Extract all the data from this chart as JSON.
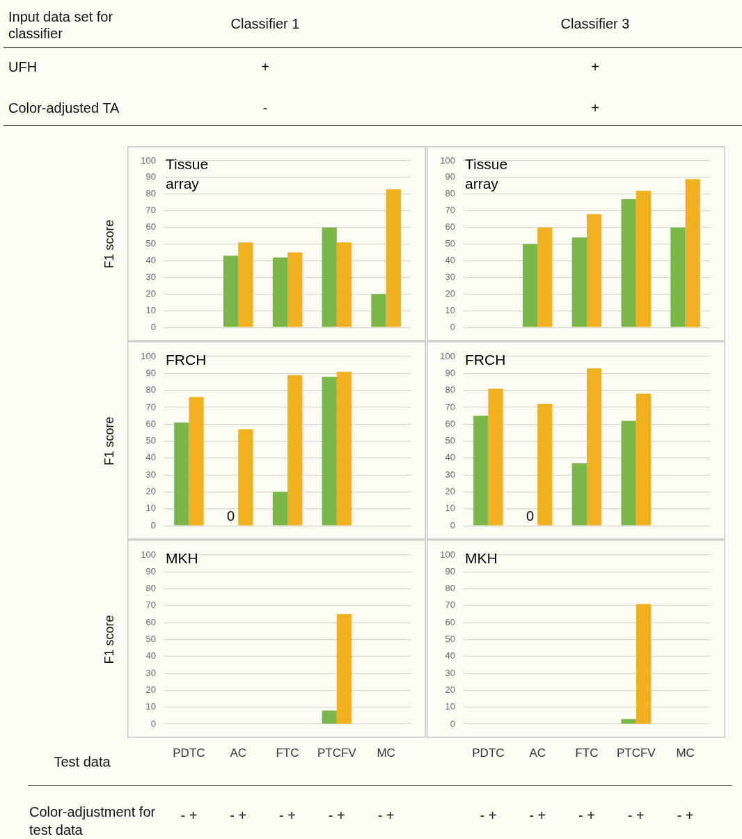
{
  "chart_data": [
    {
      "type": "other",
      "annotations": [
        "Input data set for classifier",
        "Classifier 1",
        "Classifier 3",
        "UFH",
        "+",
        "+",
        "Color-adjusted TA",
        "-",
        "+"
      ]
    },
    {
      "type": "bar",
      "title": "Tissue array",
      "ylabel": "F1 score",
      "categories": [
        null,
        null,
        null,
        null,
        null
      ],
      "ylim": [
        0,
        100
      ],
      "yticks": [
        0,
        10,
        20,
        30,
        40,
        50,
        60,
        70,
        80,
        90,
        100
      ],
      "grid": "y",
      "tick_labels": "y",
      "series": [
        {
          "color": "#7ab648",
          "values": [
            null,
            43,
            42,
            60,
            20
          ]
        },
        {
          "color": "#f0b020",
          "values": [
            null,
            51,
            45,
            51,
            83
          ]
        }
      ]
    },
    {
      "type": "bar",
      "title": "Tissue array",
      "categories": [
        null,
        null,
        null,
        null,
        null
      ],
      "ylim": [
        0,
        100
      ],
      "yticks": [
        0,
        10,
        20,
        30,
        40,
        50,
        60,
        70,
        80,
        90,
        100
      ],
      "grid": "y",
      "tick_labels": "y",
      "series": [
        {
          "color": "#7ab648",
          "values": [
            null,
            50,
            54,
            77,
            60
          ]
        },
        {
          "color": "#f0b020",
          "values": [
            null,
            60,
            68,
            82,
            89
          ]
        }
      ]
    },
    {
      "type": "bar",
      "title": "FRCH",
      "ylabel": "F1 score",
      "categories": [
        null,
        null,
        null,
        null,
        null
      ],
      "ylim": [
        0,
        100
      ],
      "yticks": [
        0,
        10,
        20,
        30,
        40,
        50,
        60,
        70,
        80,
        90,
        100
      ],
      "grid": "y",
      "tick_labels": "y",
      "series": [
        {
          "color": "#7ab648",
          "values": [
            61,
            0,
            20,
            88,
            null
          ],
          "value_labels": [
            null,
            "0",
            null,
            null,
            null
          ]
        },
        {
          "color": "#f0b020",
          "values": [
            76,
            57,
            89,
            91,
            null
          ]
        }
      ]
    },
    {
      "type": "bar",
      "title": "FRCH",
      "categories": [
        null,
        null,
        null,
        null,
        null
      ],
      "ylim": [
        0,
        100
      ],
      "yticks": [
        0,
        10,
        20,
        30,
        40,
        50,
        60,
        70,
        80,
        90,
        100
      ],
      "grid": "y",
      "tick_labels": "y",
      "series": [
        {
          "color": "#7ab648",
          "values": [
            65,
            0,
            37,
            62,
            null
          ],
          "value_labels": [
            null,
            "0",
            null,
            null,
            null
          ]
        },
        {
          "color": "#f0b020",
          "values": [
            81,
            72,
            93,
            78,
            null
          ]
        }
      ]
    },
    {
      "type": "bar",
      "title": "MKH",
      "ylabel": "F1 score",
      "xlabel": "Test data",
      "annotations": [
        "Color-adjustment for test data",
        "- +",
        "- +",
        "- +",
        "- +",
        "- +"
      ],
      "categories": [
        "PDTC",
        "AC",
        "FTC",
        "PTCFV",
        "MC"
      ],
      "ylim": [
        0,
        100
      ],
      "yticks": [
        0,
        10,
        20,
        30,
        40,
        50,
        60,
        70,
        80,
        90,
        100
      ],
      "grid": "y",
      "series": [
        {
          "color": "#7ab648",
          "values": [
            null,
            null,
            null,
            8,
            null
          ]
        },
        {
          "color": "#f0b020",
          "values": [
            null,
            null,
            null,
            65,
            null
          ]
        }
      ]
    },
    {
      "type": "bar",
      "title": "MKH",
      "annotations": [
        "- +",
        "- +",
        "- +",
        "- +",
        "- +"
      ],
      "categories": [
        "PDTC",
        "AC",
        "FTC",
        "PTCFV",
        "MC"
      ],
      "ylim": [
        0,
        100
      ],
      "yticks": [
        0,
        10,
        20,
        30,
        40,
        50,
        60,
        70,
        80,
        90,
        100
      ],
      "grid": "y",
      "series": [
        {
          "color": "#7ab648",
          "values": [
            null,
            null,
            null,
            3,
            null
          ]
        },
        {
          "color": "#f0b020",
          "values": [
            null,
            null,
            null,
            71,
            null
          ]
        }
      ]
    }
  ]
}
